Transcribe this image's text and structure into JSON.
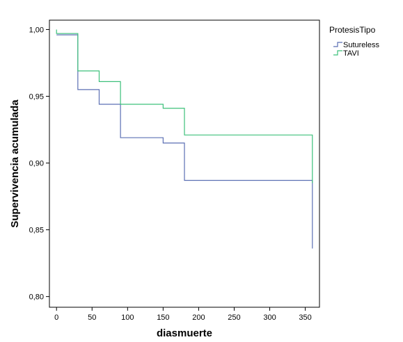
{
  "chart_data": {
    "type": "line",
    "step": true,
    "xlabel": "diasmuerte",
    "ylabel": "Supervivencia acumulada",
    "xlim": [
      -10,
      370
    ],
    "ylim": [
      0.792,
      1.007
    ],
    "x_ticks": [
      0,
      50,
      100,
      150,
      200,
      250,
      300,
      350
    ],
    "x_tick_labels": [
      "0",
      "50",
      "100",
      "150",
      "200",
      "250",
      "300",
      "350"
    ],
    "y_ticks": [
      0.8,
      0.85,
      0.9,
      0.95,
      1.0
    ],
    "y_tick_labels": [
      "0,80",
      "0,85",
      "0,90",
      "0,95",
      "1,00"
    ],
    "grid": false,
    "legend": {
      "title": "ProtesisTipo",
      "position": "right"
    },
    "series": [
      {
        "name": "Sutureless",
        "color": "#5b6fb3",
        "x": [
          0,
          30,
          30,
          60,
          60,
          90,
          90,
          150,
          150,
          180,
          180,
          360,
          360
        ],
        "y": [
          0.996,
          0.996,
          0.955,
          0.955,
          0.944,
          0.944,
          0.919,
          0.919,
          0.915,
          0.915,
          0.887,
          0.887,
          0.836
        ]
      },
      {
        "name": "TAVI",
        "color": "#3cc07a",
        "x": [
          0,
          0,
          30,
          30,
          60,
          60,
          90,
          90,
          150,
          150,
          180,
          180,
          360,
          360
        ],
        "y": [
          1.0,
          0.997,
          0.997,
          0.969,
          0.969,
          0.961,
          0.961,
          0.944,
          0.944,
          0.941,
          0.941,
          0.921,
          0.921,
          0.885
        ]
      }
    ]
  }
}
